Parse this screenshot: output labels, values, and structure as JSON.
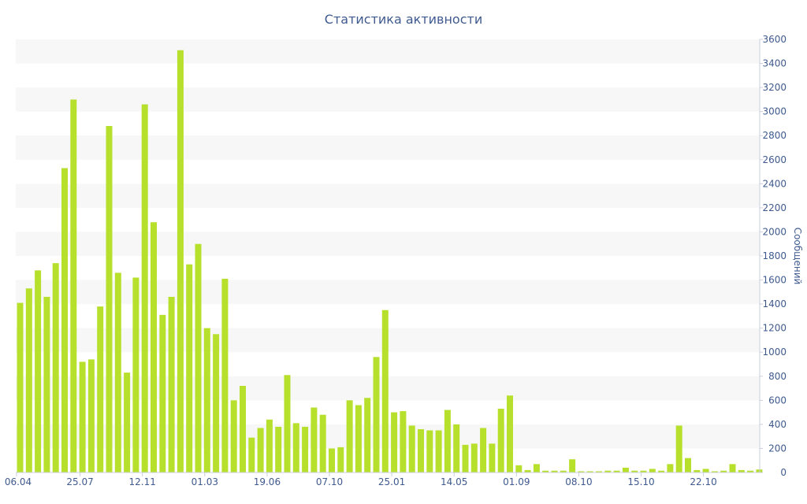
{
  "chart_data": {
    "type": "bar",
    "title": "Статистика активности",
    "ylabel": "Сообщений",
    "xlabel": "",
    "ylim": [
      0,
      3600
    ],
    "y_ticks": [
      0,
      200,
      400,
      600,
      800,
      1000,
      1200,
      1400,
      1600,
      1800,
      2000,
      2200,
      2400,
      2600,
      2800,
      3000,
      3200,
      3400,
      3600
    ],
    "y_axis_side": "right",
    "grid": "alternating horizontal bands",
    "x_tick_labels": [
      {
        "index": 0,
        "label": "06.04"
      },
      {
        "index": 7,
        "label": "25.07"
      },
      {
        "index": 14,
        "label": "12.11"
      },
      {
        "index": 21,
        "label": "01.03"
      },
      {
        "index": 28,
        "label": "19.06"
      },
      {
        "index": 35,
        "label": "07.10"
      },
      {
        "index": 42,
        "label": "25.01"
      },
      {
        "index": 49,
        "label": "14.05"
      },
      {
        "index": 56,
        "label": "01.09"
      },
      {
        "index": 63,
        "label": "08.10"
      },
      {
        "index": 70,
        "label": "15.10"
      },
      {
        "index": 77,
        "label": "22.10"
      }
    ],
    "values": [
      1410,
      1530,
      1680,
      1460,
      1740,
      2530,
      3100,
      920,
      940,
      1380,
      2880,
      1660,
      830,
      1620,
      3060,
      2080,
      1310,
      1460,
      3510,
      1730,
      1900,
      1200,
      1150,
      1610,
      600,
      720,
      290,
      370,
      440,
      380,
      810,
      410,
      380,
      540,
      480,
      200,
      210,
      600,
      560,
      620,
      960,
      1350,
      500,
      510,
      390,
      360,
      350,
      350,
      520,
      400,
      230,
      240,
      370,
      240,
      530,
      640,
      60,
      20,
      70,
      15,
      15,
      15,
      110,
      10,
      10,
      10,
      15,
      15,
      40,
      15,
      15,
      30,
      15,
      70,
      390,
      120,
      20,
      30,
      10,
      15,
      70,
      20,
      15,
      25
    ],
    "colors": {
      "bar": "#b7e02c",
      "band": "#f7f7f7",
      "text": "#3f5a8f",
      "axis": "#c8d0dc"
    }
  }
}
